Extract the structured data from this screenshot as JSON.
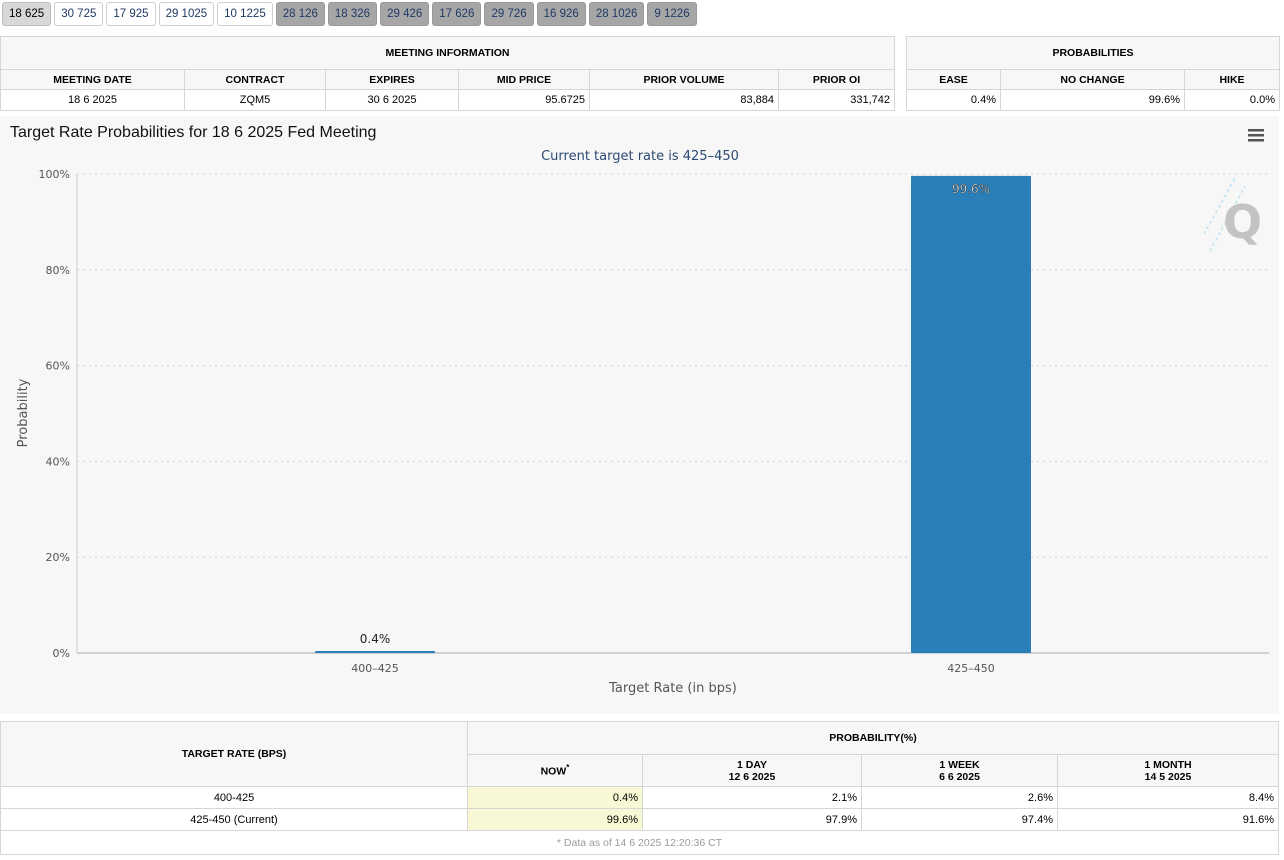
{
  "tabs": [
    {
      "label": "18 625",
      "state": "active"
    },
    {
      "label": "30 725",
      "state": "normal"
    },
    {
      "label": "17 925",
      "state": "normal"
    },
    {
      "label": "29 1025",
      "state": "normal"
    },
    {
      "label": "10 1225",
      "state": "normal"
    },
    {
      "label": "28 126",
      "state": "future"
    },
    {
      "label": "18 326",
      "state": "future"
    },
    {
      "label": "29 426",
      "state": "future"
    },
    {
      "label": "17 626",
      "state": "future"
    },
    {
      "label": "29 726",
      "state": "future"
    },
    {
      "label": "16 926",
      "state": "future"
    },
    {
      "label": "28 1026",
      "state": "future"
    },
    {
      "label": "9 1226",
      "state": "future"
    }
  ],
  "meeting_info": {
    "title": "MEETING INFORMATION",
    "headers": [
      "MEETING DATE",
      "CONTRACT",
      "EXPIRES",
      "MID PRICE",
      "PRIOR VOLUME",
      "PRIOR OI"
    ],
    "row": {
      "meeting_date": "18 6 2025",
      "contract": "ZQM5",
      "expires": "30 6 2025",
      "mid_price": "95.6725",
      "prior_volume": "83,884",
      "prior_oi": "331,742"
    }
  },
  "probabilities": {
    "title": "PROBABILITIES",
    "headers": [
      "EASE",
      "NO CHANGE",
      "HIKE"
    ],
    "row": {
      "ease": "0.4%",
      "no_change": "99.6%",
      "hike": "0.0%"
    }
  },
  "chart_data": {
    "type": "bar",
    "title": "Target Rate Probabilities for 18 6 2025 Fed Meeting",
    "subtitle": "Current target rate is 425–450",
    "xlabel": "Target Rate (in bps)",
    "ylabel": "Probability",
    "categories": [
      "400–425",
      "425–450"
    ],
    "values": [
      0.4,
      99.6
    ],
    "data_labels": [
      "0.4%",
      "99.6%"
    ],
    "ylim": [
      0,
      100
    ],
    "yticks": [
      "0%",
      "20%",
      "40%",
      "60%",
      "80%",
      "100%"
    ],
    "grid": true,
    "bar_color": "#2b7fb8",
    "menu_icon": "hamburger-menu-icon",
    "watermark": "Q"
  },
  "rates_table": {
    "target_rate_header": "TARGET RATE (BPS)",
    "probability_header": "PROBABILITY(%)",
    "columns": [
      {
        "label": "NOW",
        "sub": "",
        "marker": "*"
      },
      {
        "label": "1 DAY",
        "sub": "12 6 2025",
        "marker": ""
      },
      {
        "label": "1 WEEK",
        "sub": "6 6 2025",
        "marker": ""
      },
      {
        "label": "1 MONTH",
        "sub": "14 5 2025",
        "marker": ""
      }
    ],
    "rows": [
      {
        "rate": "400-425",
        "values": [
          "0.4%",
          "2.1%",
          "2.6%",
          "8.4%"
        ]
      },
      {
        "rate": "425-450 (Current)",
        "values": [
          "99.6%",
          "97.9%",
          "97.4%",
          "91.6%"
        ]
      }
    ],
    "footnote": "* Data as of 14 6 2025 12:20:36 CT"
  }
}
